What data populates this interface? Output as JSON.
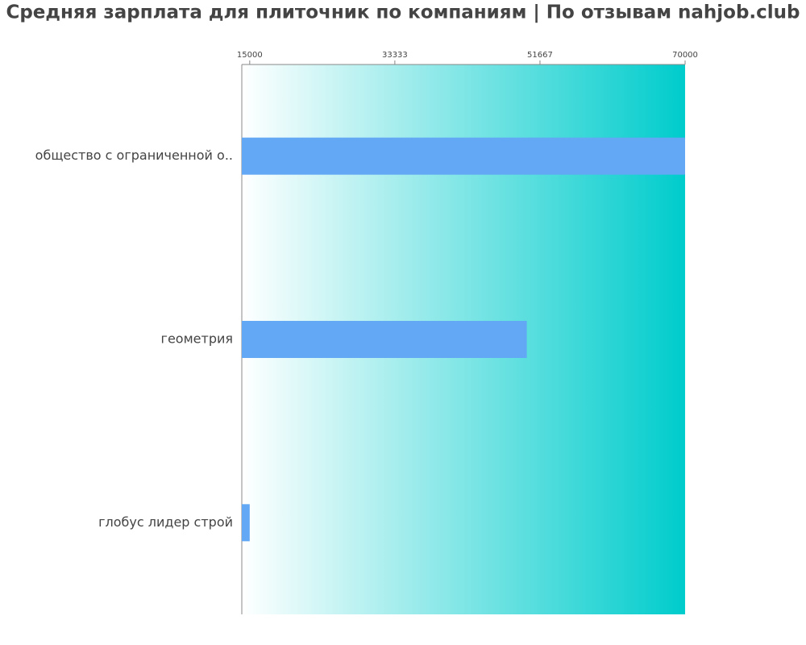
{
  "chart_data": {
    "type": "bar",
    "orientation": "horizontal",
    "title": "Средняя зарплата для плиточник по компаниям  | По отзывам nahjob.club",
    "categories": [
      "общество с ограниченной о..",
      "геометрия",
      "глобус лидер строй"
    ],
    "values": [
      70000,
      50000,
      15000
    ],
    "color": "#62a8f4",
    "background_gradient": [
      "#ffffff",
      "#00cccc"
    ],
    "xlim": [
      14000,
      70000
    ],
    "xticks": [
      15000,
      33333,
      51667,
      70000
    ]
  }
}
